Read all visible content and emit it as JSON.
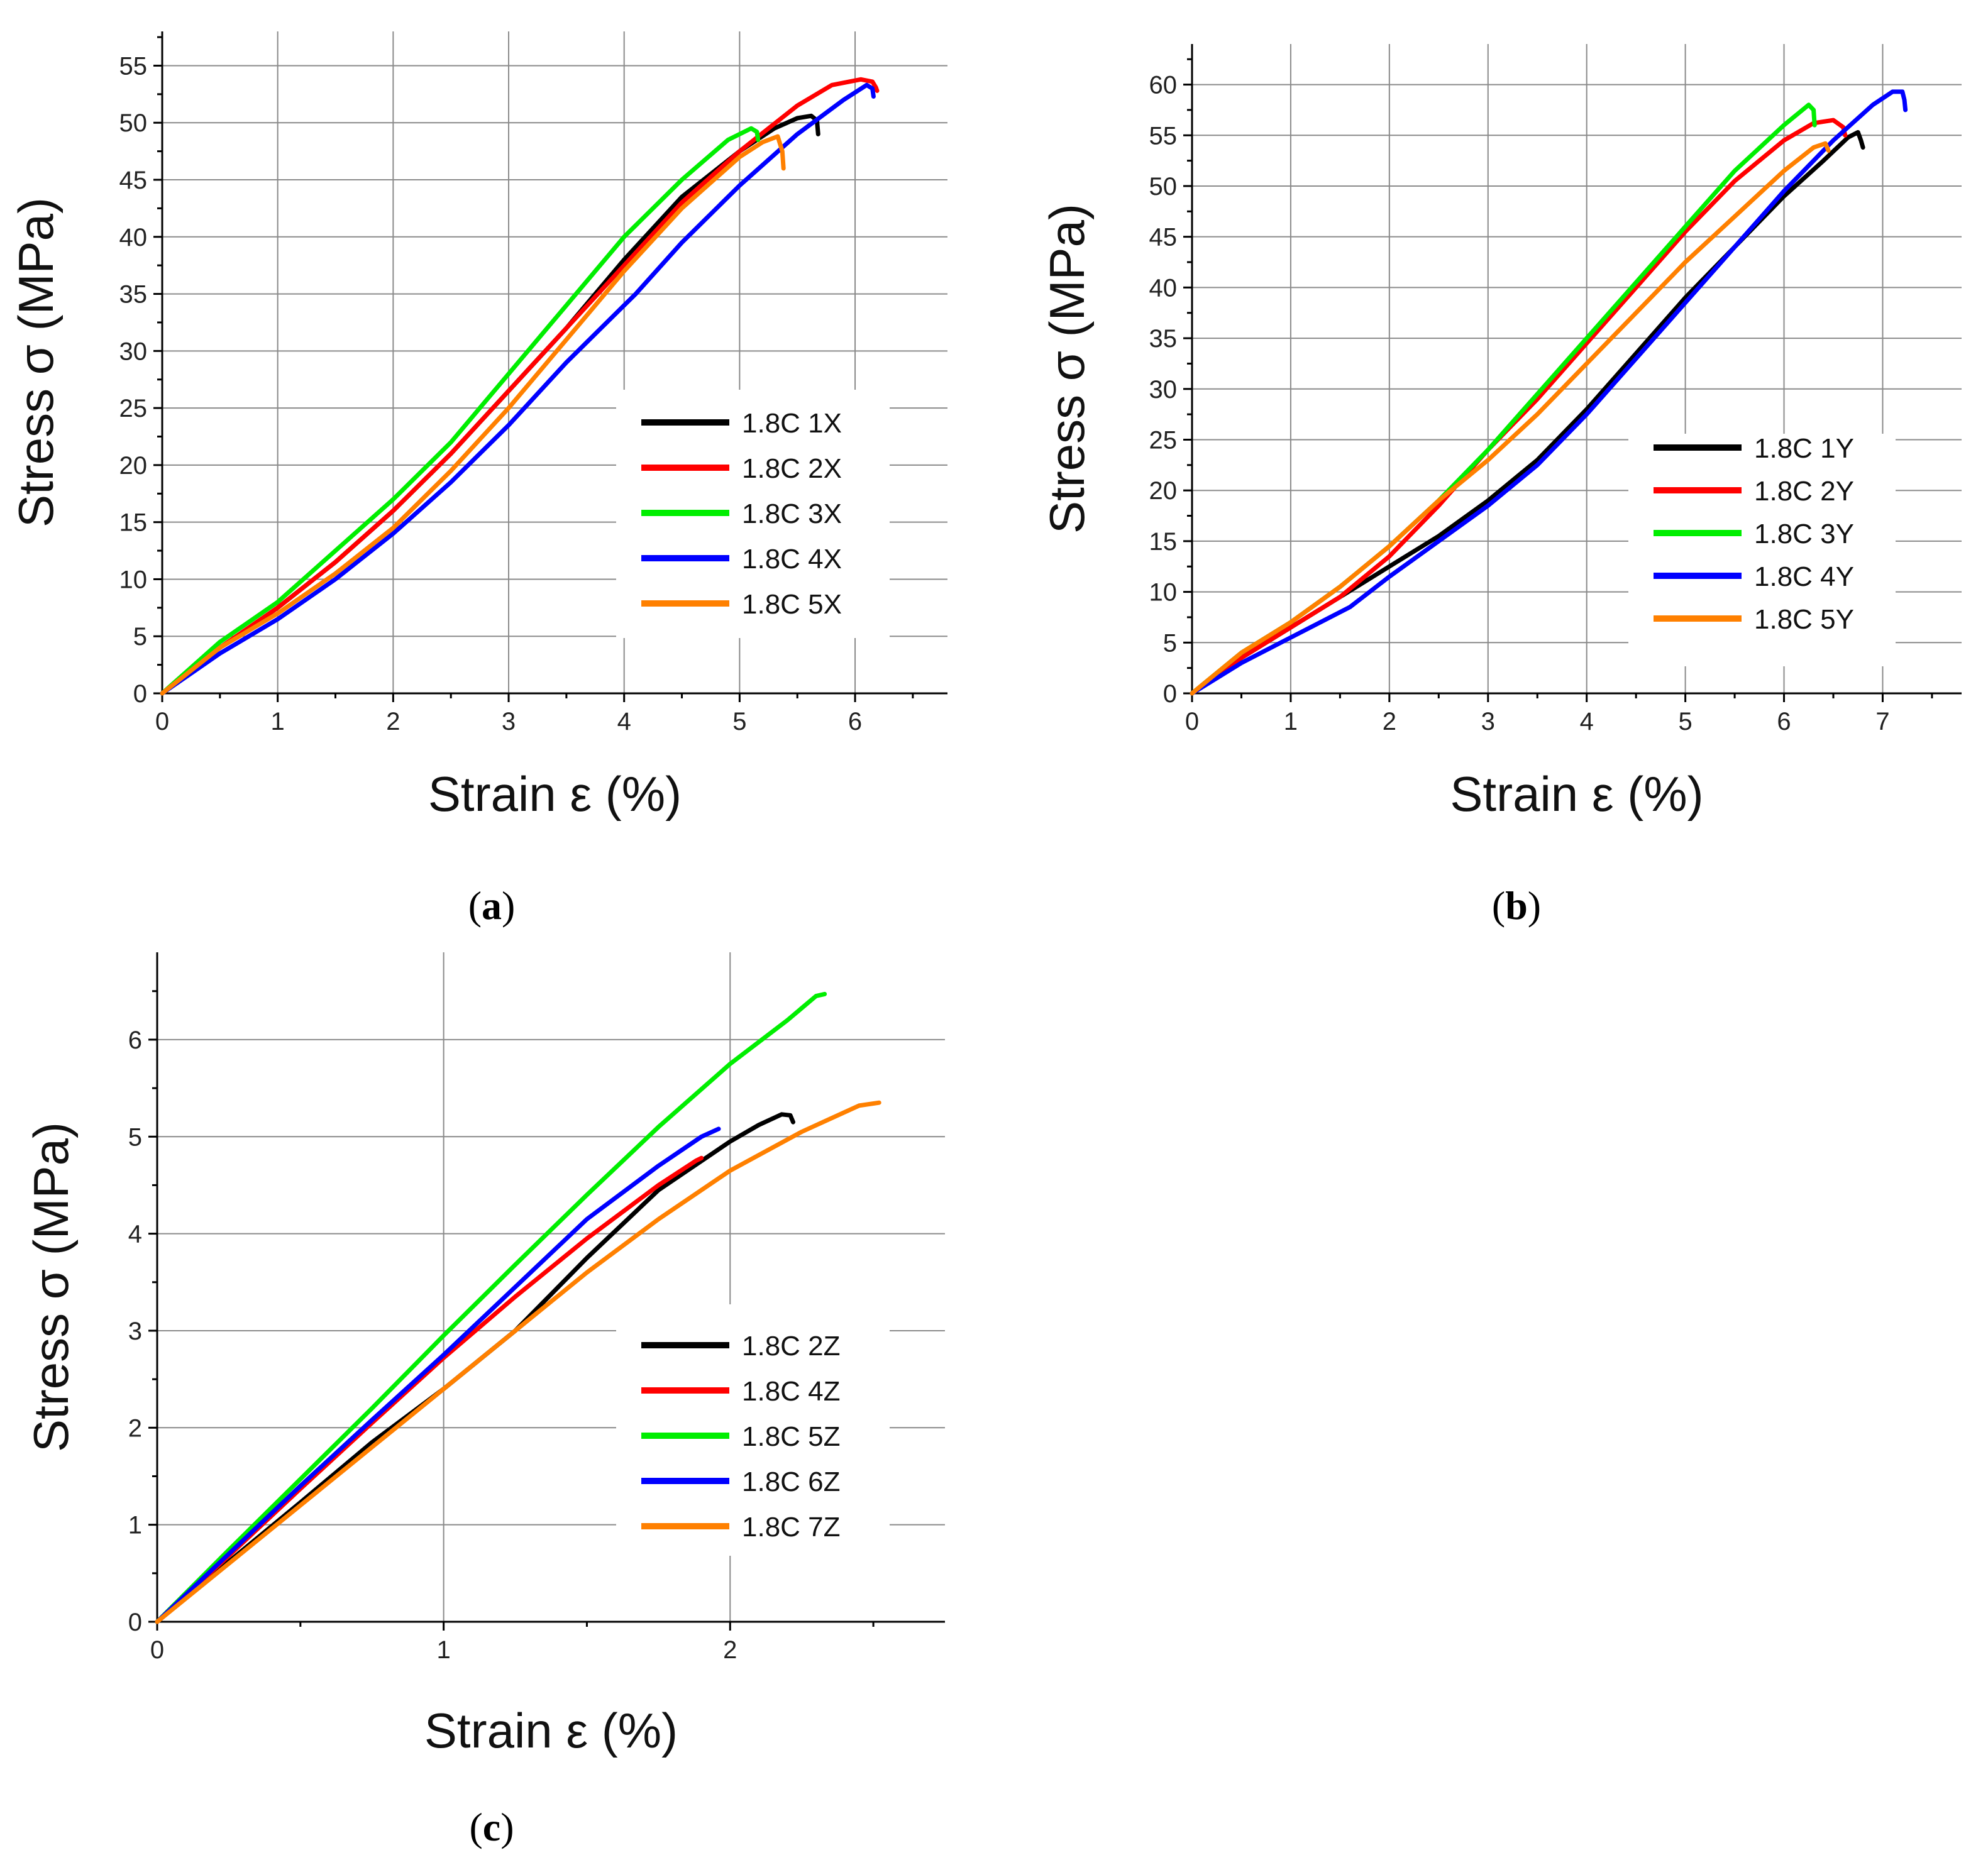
{
  "chart_data": [
    {
      "id": "a",
      "type": "line",
      "caption": "a",
      "xlabel": "Strain ε (%)",
      "ylabel": "Stress σ (MPa)",
      "xlim": [
        0,
        6.8
      ],
      "ylim": [
        0,
        58
      ],
      "xticks": [
        0,
        1,
        2,
        3,
        4,
        5,
        6
      ],
      "yticks": [
        0,
        5,
        10,
        15,
        20,
        25,
        30,
        35,
        40,
        45,
        50,
        55
      ],
      "grid": true,
      "legend_position": "center-right",
      "series": [
        {
          "name": "1.8C 1X",
          "color": "#000000",
          "x": [
            0,
            0.5,
            1,
            1.5,
            2,
            2.5,
            3,
            3.5,
            4,
            4.5,
            5,
            5.3,
            5.5,
            5.62,
            5.67,
            5.68
          ],
          "y": [
            0,
            4,
            7.5,
            11.5,
            16,
            21,
            26.5,
            32,
            38,
            43.5,
            47.5,
            49.5,
            50.4,
            50.6,
            50.2,
            49
          ]
        },
        {
          "name": "1.8C 2X",
          "color": "#ff0000",
          "x": [
            0,
            0.5,
            1,
            1.5,
            2,
            2.5,
            3,
            3.5,
            4,
            4.5,
            5,
            5.5,
            5.8,
            6.05,
            6.15,
            6.18,
            6.19
          ],
          "y": [
            0,
            4,
            7.5,
            11.5,
            16,
            21,
            26.5,
            32,
            37.5,
            43,
            47.5,
            51.5,
            53.3,
            53.8,
            53.6,
            53.1,
            52.8
          ]
        },
        {
          "name": "1.8C 3X",
          "color": "#00ee00",
          "x": [
            0,
            0.5,
            1,
            1.5,
            2,
            2.5,
            3,
            3.5,
            4,
            4.5,
            4.9,
            5.1,
            5.15,
            5.16
          ],
          "y": [
            0,
            4.5,
            8,
            12.5,
            17,
            22,
            28,
            34,
            40,
            45,
            48.5,
            49.5,
            49.2,
            48.5
          ]
        },
        {
          "name": "1.8C 4X",
          "color": "#0000ff",
          "x": [
            0,
            0.5,
            1,
            1.5,
            2,
            2.5,
            3,
            3.5,
            4,
            4.1,
            4.5,
            5,
            5.5,
            5.9,
            6.1,
            6.15,
            6.16
          ],
          "y": [
            0,
            3.5,
            6.5,
            10,
            14,
            18.5,
            23.5,
            29,
            34,
            35,
            39.5,
            44.5,
            49,
            52,
            53.3,
            53,
            52.3
          ]
        },
        {
          "name": "1.8C 5X",
          "color": "#ff8000",
          "x": [
            0,
            0.5,
            1,
            1.5,
            2,
            2.5,
            3,
            3.5,
            4,
            4.5,
            5,
            5.2,
            5.33,
            5.37,
            5.38
          ],
          "y": [
            0,
            4,
            7,
            10.5,
            14.5,
            19.5,
            25,
            31,
            37,
            42.5,
            47,
            48.3,
            48.8,
            47.5,
            46
          ]
        }
      ]
    },
    {
      "id": "b",
      "type": "line",
      "caption": "b",
      "xlabel": "Strain ε (%)",
      "ylabel": "Stress σ (MPa)",
      "xlim": [
        0,
        7.8
      ],
      "ylim": [
        0,
        64
      ],
      "xticks": [
        0,
        1,
        2,
        3,
        4,
        5,
        6,
        7
      ],
      "yticks": [
        0,
        5,
        10,
        15,
        20,
        25,
        30,
        35,
        40,
        45,
        50,
        55,
        60
      ],
      "grid": true,
      "legend_position": "center-right",
      "series": [
        {
          "name": "1.8C 1Y",
          "color": "#000000",
          "x": [
            0,
            0.5,
            1,
            1.5,
            2,
            2.5,
            3,
            3.5,
            4,
            4.5,
            5,
            5.5,
            6,
            6.4,
            6.65,
            6.75,
            6.78,
            6.8
          ],
          "y": [
            0,
            3.5,
            6.5,
            9.5,
            12.5,
            15.5,
            19,
            23,
            28,
            33.5,
            39,
            44,
            49,
            52.5,
            54.8,
            55.3,
            54.5,
            53.8
          ]
        },
        {
          "name": "1.8C 2Y",
          "color": "#ff0000",
          "x": [
            0,
            0.5,
            1,
            1.5,
            2,
            2.5,
            3,
            3.5,
            4,
            4.5,
            5,
            5.5,
            6,
            6.3,
            6.5,
            6.6,
            6.62
          ],
          "y": [
            0,
            3.5,
            6.5,
            9.5,
            13.5,
            18.5,
            24,
            29,
            34.5,
            40,
            45.5,
            50.5,
            54.5,
            56.2,
            56.5,
            55.8,
            55
          ]
        },
        {
          "name": "1.8C 3Y",
          "color": "#00ee00",
          "x": [
            0,
            0.5,
            1,
            1.5,
            2,
            2.5,
            3,
            3.5,
            4,
            4.5,
            5,
            5.5,
            6,
            6.25,
            6.3,
            6.31
          ],
          "y": [
            0,
            4,
            7,
            10.5,
            14.5,
            19,
            24,
            29.5,
            35,
            40.5,
            46,
            51.5,
            56,
            58,
            57.5,
            56
          ]
        },
        {
          "name": "1.8C 4Y",
          "color": "#0000ff",
          "x": [
            0,
            0.5,
            1,
            1.6,
            2,
            2.5,
            3,
            3.5,
            4,
            4.5,
            5,
            5.5,
            6,
            6.5,
            6.9,
            7.1,
            7.2,
            7.22,
            7.23
          ],
          "y": [
            0,
            3,
            5.5,
            8.5,
            11.5,
            15,
            18.5,
            22.5,
            27.5,
            33,
            38.5,
            44,
            49.5,
            54.5,
            58,
            59.3,
            59.3,
            58.5,
            57.5
          ]
        },
        {
          "name": "1.8C 5Y",
          "color": "#ff8000",
          "x": [
            0,
            0.5,
            1,
            1.5,
            2,
            2.5,
            3,
            3.5,
            4,
            4.5,
            5,
            5.5,
            6,
            6.3,
            6.42,
            6.45
          ],
          "y": [
            0,
            4,
            7,
            10.5,
            14.5,
            19,
            23,
            27.5,
            32.5,
            37.5,
            42.5,
            47,
            51.5,
            53.8,
            54.2,
            53.5
          ]
        }
      ]
    },
    {
      "id": "c",
      "type": "line",
      "caption": "c",
      "xlabel": "Strain ε (%)",
      "ylabel": "Stress σ (MPa)",
      "xlim": [
        0,
        2.75
      ],
      "ylim": [
        0,
        6.9
      ],
      "xticks": [
        0,
        1,
        2
      ],
      "yticks": [
        0,
        1,
        2,
        3,
        4,
        5,
        6
      ],
      "grid": true,
      "legend_position": "center-right",
      "series": [
        {
          "name": "1.8C 2Z",
          "color": "#000000",
          "x": [
            0,
            0.25,
            0.5,
            0.75,
            1,
            1.25,
            1.5,
            1.75,
            2,
            2.1,
            2.18,
            2.21,
            2.22
          ],
          "y": [
            0,
            0.62,
            1.23,
            1.85,
            2.4,
            3,
            3.75,
            4.45,
            4.95,
            5.12,
            5.23,
            5.22,
            5.15
          ]
        },
        {
          "name": "1.8C 4Z",
          "color": "#ff0000",
          "x": [
            0,
            0.25,
            0.5,
            0.75,
            1,
            1.25,
            1.5,
            1.75,
            1.88,
            1.9
          ],
          "y": [
            0,
            0.68,
            1.37,
            2.05,
            2.72,
            3.35,
            3.95,
            4.5,
            4.75,
            4.78
          ]
        },
        {
          "name": "1.8C 5Z",
          "color": "#00ee00",
          "x": [
            0,
            0.25,
            0.5,
            0.75,
            1,
            1.25,
            1.5,
            1.75,
            2,
            2.2,
            2.3,
            2.33
          ],
          "y": [
            0,
            0.74,
            1.47,
            2.2,
            2.95,
            3.68,
            4.4,
            5.1,
            5.75,
            6.2,
            6.45,
            6.47
          ]
        },
        {
          "name": "1.8C 6Z",
          "color": "#0000ff",
          "x": [
            0,
            0.25,
            0.5,
            0.75,
            1,
            1.25,
            1.5,
            1.75,
            1.9,
            1.96
          ],
          "y": [
            0,
            0.7,
            1.4,
            2.08,
            2.75,
            3.45,
            4.15,
            4.7,
            5.0,
            5.08
          ]
        },
        {
          "name": "1.8C 7Z",
          "color": "#ff8000",
          "x": [
            0,
            0.25,
            0.5,
            0.75,
            1,
            1.25,
            1.5,
            1.75,
            2,
            2.25,
            2.45,
            2.52
          ],
          "y": [
            0,
            0.6,
            1.2,
            1.8,
            2.4,
            3.0,
            3.6,
            4.15,
            4.65,
            5.05,
            5.32,
            5.35
          ]
        }
      ]
    }
  ]
}
